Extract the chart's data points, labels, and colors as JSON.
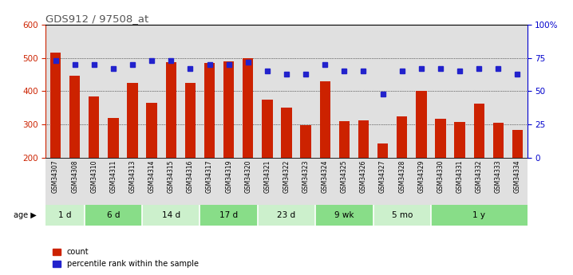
{
  "title": "GDS912 / 97508_at",
  "samples": [
    "GSM34307",
    "GSM34308",
    "GSM34310",
    "GSM34311",
    "GSM34313",
    "GSM34314",
    "GSM34315",
    "GSM34316",
    "GSM34317",
    "GSM34319",
    "GSM34320",
    "GSM34321",
    "GSM34322",
    "GSM34323",
    "GSM34324",
    "GSM34325",
    "GSM34326",
    "GSM34327",
    "GSM34328",
    "GSM34329",
    "GSM34330",
    "GSM34331",
    "GSM34332",
    "GSM34333",
    "GSM34334"
  ],
  "counts": [
    517,
    447,
    383,
    319,
    425,
    365,
    487,
    425,
    485,
    490,
    500,
    375,
    350,
    298,
    430,
    310,
    313,
    242,
    323,
    400,
    318,
    308,
    362,
    305,
    283
  ],
  "percentile_ranks": [
    73,
    70,
    70,
    67,
    70,
    73,
    73,
    67,
    70,
    70,
    72,
    65,
    63,
    63,
    70,
    65,
    65,
    48,
    65,
    67,
    67,
    65,
    67,
    67,
    63
  ],
  "age_groups": [
    {
      "label": "1 d",
      "start": 0,
      "end": 2
    },
    {
      "label": "6 d",
      "start": 2,
      "end": 5
    },
    {
      "label": "14 d",
      "start": 5,
      "end": 8
    },
    {
      "label": "17 d",
      "start": 8,
      "end": 11
    },
    {
      "label": "23 d",
      "start": 11,
      "end": 14
    },
    {
      "label": "9 wk",
      "start": 14,
      "end": 17
    },
    {
      "label": "5 mo",
      "start": 17,
      "end": 20
    },
    {
      "label": "1 y",
      "start": 20,
      "end": 25
    }
  ],
  "bar_color": "#cc2200",
  "dot_color": "#2222cc",
  "ymin": 200,
  "ymax": 600,
  "yticks": [
    200,
    300,
    400,
    500,
    600
  ],
  "yticks_right": [
    0,
    25,
    50,
    75,
    100
  ],
  "bg_color_main": "#e0e0e0",
  "bg_color_age_light": "#ccf0cc",
  "bg_color_age_dark": "#88dd88",
  "title_color": "#555555",
  "axis_color_left": "#cc2200",
  "axis_color_right": "#0000cc"
}
